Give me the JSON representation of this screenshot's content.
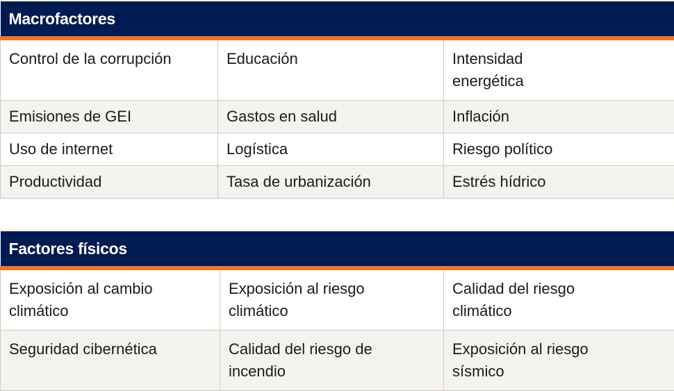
{
  "tables": [
    {
      "title": "Macrofactores",
      "rows": [
        [
          "Control de la corrupción",
          "Educación",
          "Intensidad energética"
        ],
        [
          "Emisiones de GEI",
          "Gastos en salud",
          "Inflación"
        ],
        [
          "Uso de internet",
          "Logística",
          "Riesgo político"
        ],
        [
          "Productividad",
          "Tasa de urbanización",
          "Estrés hídrico"
        ]
      ]
    },
    {
      "title": "Factores físicos",
      "rows": [
        [
          "Exposición al cambio climático",
          "Exposición al riesgo climático",
          "Calidad del riesgo climático"
        ],
        [
          "Seguridad cibernética",
          "Calidad del riesgo de incendio",
          "Exposición al riesgo sísmico"
        ]
      ]
    }
  ],
  "colors": {
    "header": "#001a52",
    "accent": "#f47421",
    "alt_row": "#f4f4ef"
  }
}
